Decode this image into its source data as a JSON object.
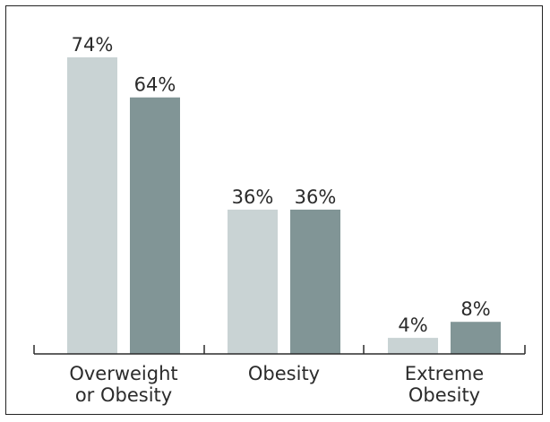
{
  "chart_data": {
    "type": "bar",
    "categories": [
      [
        "Overweight",
        "or Obesity"
      ],
      [
        "Obesity"
      ],
      [
        "Extreme",
        "Obesity"
      ]
    ],
    "series": [
      {
        "values": [
          74,
          36,
          4
        ],
        "labels": [
          "74%",
          "36%",
          "4%"
        ],
        "color": "#c9d3d4"
      },
      {
        "values": [
          64,
          36,
          8
        ],
        "labels": [
          "64%",
          "36%",
          "8%"
        ],
        "color": "#819596"
      }
    ],
    "ylim": [
      0,
      74
    ],
    "grid": false,
    "legend": "none",
    "axis_color": "#2b2b2b"
  }
}
